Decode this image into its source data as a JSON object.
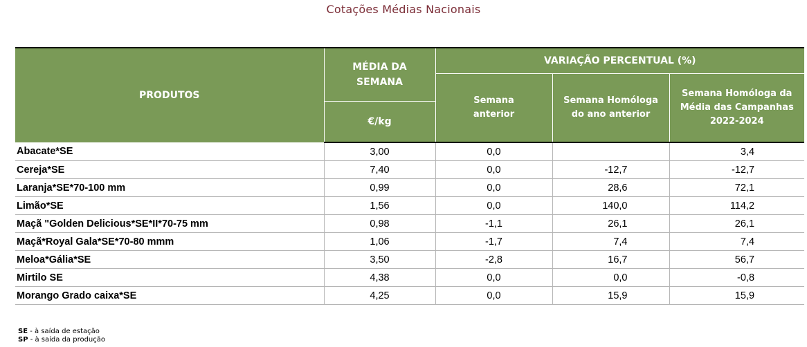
{
  "title": "Cotações Médias Nacionais",
  "colors": {
    "title": "#7b2c36",
    "header_bg": "#7a9a57",
    "header_text": "#ffffff",
    "grid": "#b5b5b5"
  },
  "table": {
    "headers": {
      "products": "PRODUTOS",
      "media_line1": "MÉDIA DA",
      "media_line2": "SEMANA",
      "unit": "€/kg",
      "variation": "VARIAÇÃO PERCENTUAL (%)",
      "semana_anterior_1": "Semana",
      "semana_anterior_2": "anterior",
      "homologa_1": "Semana Homóloga",
      "homologa_2": "do ano anterior",
      "campanhas_1": "Semana Homóloga da",
      "campanhas_2": "Média das Campanhas",
      "campanhas_3": "2022-2024"
    },
    "rows": [
      {
        "product": "Abacate*SE",
        "media": "3,00",
        "semana_anterior": "0,0",
        "homologa_ano_anterior": "",
        "homologa_campanhas": "3,4"
      },
      {
        "product": "Cereja*SE",
        "media": "7,40",
        "semana_anterior": "0,0",
        "homologa_ano_anterior": "-12,7",
        "homologa_campanhas": "-12,7"
      },
      {
        "product": "Laranja*SE*70-100 mm",
        "media": "0,99",
        "semana_anterior": "0,0",
        "homologa_ano_anterior": "28,6",
        "homologa_campanhas": "72,1"
      },
      {
        "product": "Limão*SE",
        "media": "1,56",
        "semana_anterior": "0,0",
        "homologa_ano_anterior": "140,0",
        "homologa_campanhas": "114,2"
      },
      {
        "product": "Maçã \"Golden Delicious*SE*II*70-75 mm",
        "media": "0,98",
        "semana_anterior": "-1,1",
        "homologa_ano_anterior": "26,1",
        "homologa_campanhas": "26,1"
      },
      {
        "product": "Maçã*Royal Gala*SE*70-80 mmm",
        "media": "1,06",
        "semana_anterior": "-1,7",
        "homologa_ano_anterior": "7,4",
        "homologa_campanhas": "7,4"
      },
      {
        "product": "Meloa*Gália*SE",
        "media": "3,50",
        "semana_anterior": "-2,8",
        "homologa_ano_anterior": "16,7",
        "homologa_campanhas": "56,7"
      },
      {
        "product": "Mirtilo SE",
        "media": "4,38",
        "semana_anterior": "0,0",
        "homologa_ano_anterior": "0,0",
        "homologa_campanhas": "-0,8"
      },
      {
        "product": "Morango Grado caixa*SE",
        "media": "4,25",
        "semana_anterior": "0,0",
        "homologa_ano_anterior": "15,9",
        "homologa_campanhas": "15,9"
      }
    ]
  },
  "notes": [
    {
      "abbr": "SE",
      "text": " - à saída de estação"
    },
    {
      "abbr": "SP",
      "text": " - à saída da produção"
    }
  ]
}
